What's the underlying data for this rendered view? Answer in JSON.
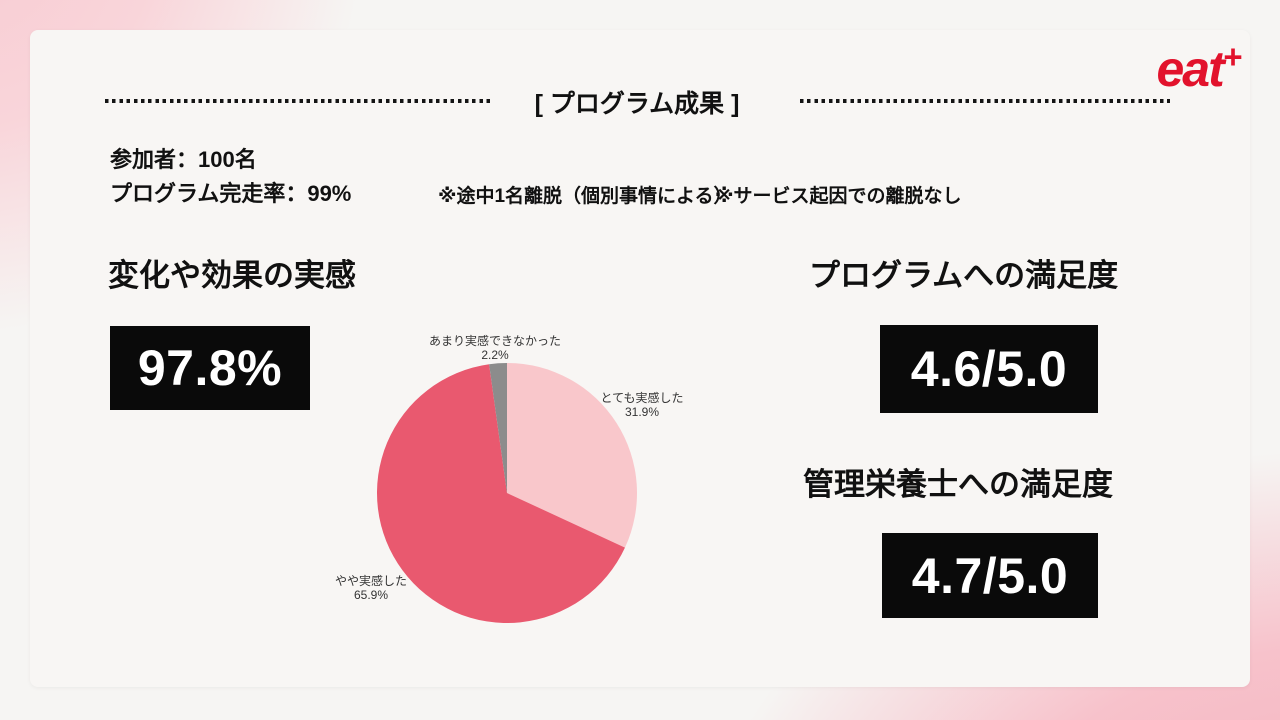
{
  "logo": {
    "text": "eat",
    "plus": "+",
    "color": "#e2122c"
  },
  "header": {
    "title": "[ プログラム成果 ]"
  },
  "stats": {
    "participants": "参加者：100名",
    "completion_rate": "プログラム完走率：99%",
    "note_1": "※途中1名離脱（個別事情による）",
    "note_2": "※サービス起因での離脱なし"
  },
  "effect_section": {
    "title": "変化や効果の実感",
    "highlight_value": "97.8%"
  },
  "satisfaction_section": {
    "program_title": "プログラムへの満足度",
    "program_score": "4.6/5.0",
    "dietitian_title": "管理栄養士への満足度",
    "dietitian_score": "4.7/5.0"
  },
  "chart_data": {
    "type": "pie",
    "title": "変化や効果の実感",
    "labels": [
      "とても実感した",
      "やや実感した",
      "あまり実感できなかった"
    ],
    "values": [
      31.9,
      65.9,
      2.2
    ],
    "pct_labels": [
      "31.9%",
      "65.9%",
      "2.2%"
    ],
    "colors": [
      "#f9c7cb",
      "#e9596f",
      "#8c8c8c"
    ],
    "start_angle": "top",
    "direction": "clockwise",
    "legend": "none"
  },
  "colors": {
    "accent_red": "#e2122c",
    "stat_box_bg": "#0a0a0a",
    "stat_box_text": "#ffffff",
    "card_bg": "#f8f6f4",
    "pink_bg_top_left": "#f8cbd2",
    "pink_bg_bottom_right": "#f4b0bd",
    "text": "#111111"
  }
}
